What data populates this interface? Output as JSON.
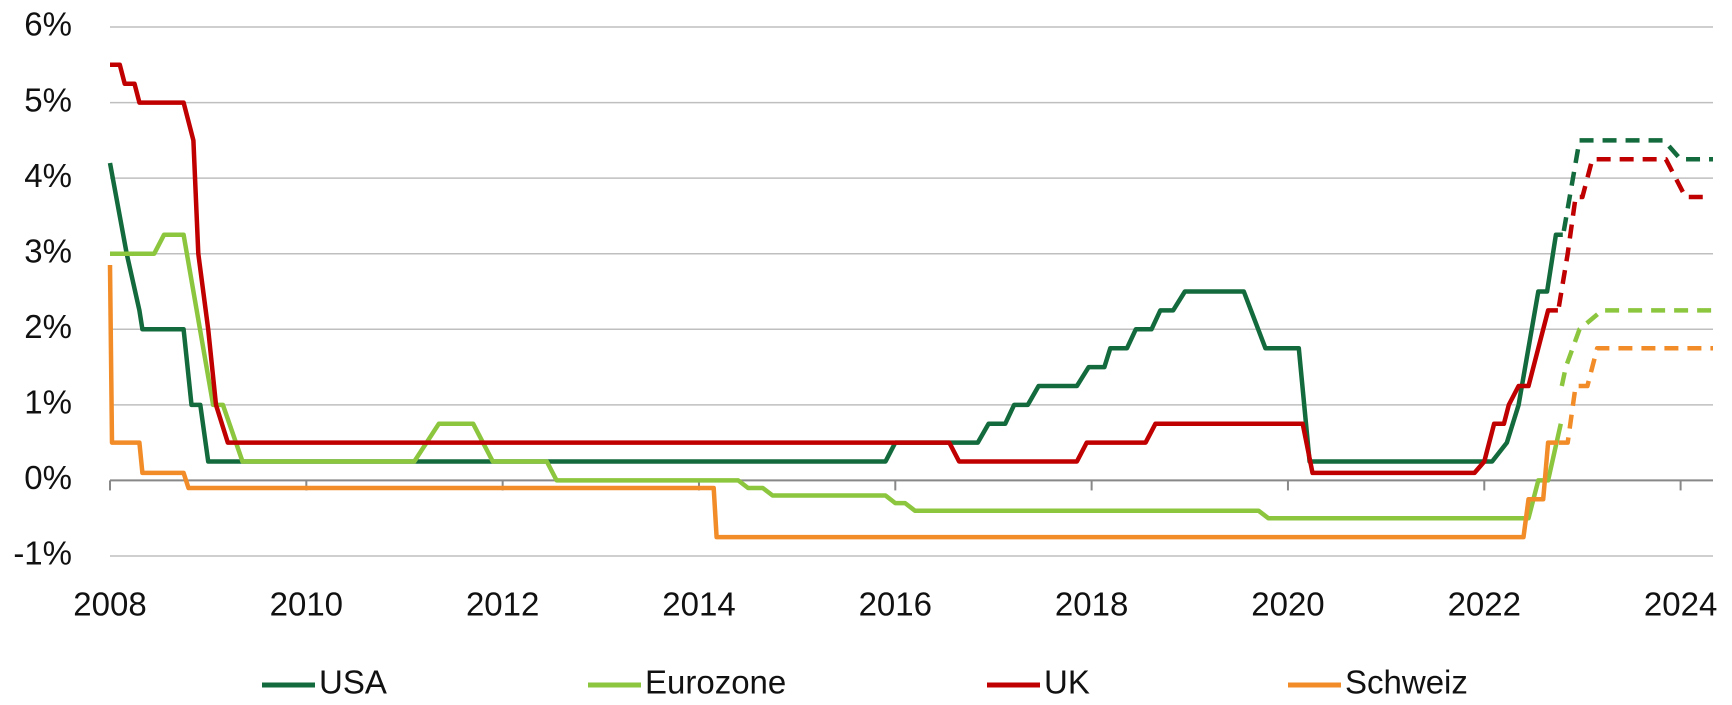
{
  "chart_data": {
    "type": "line",
    "xlim": [
      2008,
      2024.33
    ],
    "xticks": [
      2008,
      2010,
      2012,
      2014,
      2016,
      2018,
      2020,
      2022,
      2024
    ],
    "ylim": [
      -1,
      6
    ],
    "yticks": [
      {
        "value": -1,
        "label": "-1%"
      },
      {
        "value": 0,
        "label": "0%"
      },
      {
        "value": 1,
        "label": "1%"
      },
      {
        "value": 2,
        "label": "2%"
      },
      {
        "value": 3,
        "label": "3%"
      },
      {
        "value": 4,
        "label": "4%"
      },
      {
        "value": 5,
        "label": "5%"
      },
      {
        "value": 6,
        "label": "6%"
      }
    ],
    "grid": true,
    "legend": "bottom",
    "series": [
      {
        "name": "USA",
        "color": "#136b3d",
        "x": [
          2008.0,
          2008.17,
          2008.3,
          2008.33,
          2008.75,
          2008.83,
          2008.92,
          2009.0,
          2015.9,
          2016.0,
          2016.84,
          2016.95,
          2017.12,
          2017.21,
          2017.35,
          2017.46,
          2017.85,
          2017.97,
          2018.13,
          2018.19,
          2018.36,
          2018.45,
          2018.61,
          2018.7,
          2018.83,
          2018.95,
          2019.55,
          2019.77,
          2020.11,
          2020.22,
          2022.08,
          2022.23,
          2022.35,
          2022.55,
          2022.64,
          2022.73,
          2022.8
        ],
        "values": [
          4.2,
          3.0,
          2.25,
          2.0,
          2.0,
          1.0,
          1.0,
          0.25,
          0.25,
          0.5,
          0.5,
          0.75,
          0.75,
          1.0,
          1.0,
          1.25,
          1.25,
          1.5,
          1.5,
          1.75,
          1.75,
          2.0,
          2.0,
          2.25,
          2.25,
          2.5,
          2.5,
          1.75,
          1.75,
          0.25,
          0.25,
          0.5,
          1.0,
          2.5,
          2.5,
          3.25,
          3.25
        ],
        "forecast_x": [
          2022.81,
          2022.97,
          2023.83,
          2024.0,
          2024.33
        ],
        "forecast_values": [
          3.3,
          4.5,
          4.5,
          4.25,
          4.25
        ]
      },
      {
        "name": "Eurozone",
        "color": "#8cc63f",
        "x": [
          2008.0,
          2008.45,
          2008.55,
          2008.75,
          2009.05,
          2009.15,
          2009.35,
          2011.1,
          2011.35,
          2011.7,
          2011.9,
          2012.45,
          2012.55,
          2014.4,
          2014.5,
          2014.65,
          2014.75,
          2015.9,
          2016.0,
          2016.1,
          2016.2,
          2019.7,
          2019.8,
          2022.45,
          2022.55,
          2022.65,
          2022.78
        ],
        "values": [
          3.0,
          3.0,
          3.25,
          3.25,
          1.0,
          1.0,
          0.25,
          0.25,
          0.75,
          0.75,
          0.25,
          0.25,
          0.0,
          0.0,
          -0.1,
          -0.1,
          -0.2,
          -0.2,
          -0.3,
          -0.3,
          -0.4,
          -0.4,
          -0.5,
          -0.5,
          0.0,
          0.0,
          0.75
        ],
        "forecast_x": [
          2022.79,
          2022.83,
          2022.97,
          2023.2,
          2024.33
        ],
        "forecast_values": [
          1.25,
          1.5,
          2.0,
          2.25,
          2.25
        ]
      },
      {
        "name": "UK",
        "color": "#c00000",
        "x": [
          2008.0,
          2008.1,
          2008.15,
          2008.25,
          2008.3,
          2008.75,
          2008.85,
          2008.9,
          2009.0,
          2009.08,
          2009.2,
          2016.55,
          2016.65,
          2017.85,
          2017.95,
          2018.55,
          2018.65,
          2020.15,
          2020.25,
          2021.9,
          2022.0,
          2022.1,
          2022.2,
          2022.25,
          2022.35,
          2022.45,
          2022.55,
          2022.65,
          2022.75
        ],
        "values": [
          5.5,
          5.5,
          5.25,
          5.25,
          5.0,
          5.0,
          4.5,
          3.0,
          2.0,
          1.0,
          0.5,
          0.5,
          0.25,
          0.25,
          0.5,
          0.5,
          0.75,
          0.75,
          0.1,
          0.1,
          0.25,
          0.75,
          0.75,
          1.0,
          1.25,
          1.25,
          1.75,
          2.25,
          2.25
        ],
        "forecast_x": [
          2022.76,
          2022.85,
          2022.93,
          2023.0,
          2023.1,
          2023.85,
          2024.05,
          2024.27
        ],
        "forecast_values": [
          2.3,
          3.0,
          3.75,
          3.75,
          4.25,
          4.25,
          3.75,
          3.75
        ]
      },
      {
        "name": "Schweiz",
        "color": "#f28c28",
        "x": [
          2008.0,
          2008.02,
          2008.3,
          2008.33,
          2008.75,
          2008.8,
          2014.15,
          2014.18,
          2022.4,
          2022.45,
          2022.6,
          2022.65,
          2022.75
        ],
        "values": [
          2.85,
          0.5,
          0.5,
          0.1,
          0.1,
          -0.1,
          -0.1,
          -0.75,
          -0.75,
          -0.25,
          -0.25,
          0.5,
          0.5
        ],
        "forecast_x": [
          2022.76,
          2022.85,
          2022.93,
          2023.05,
          2023.15,
          2024.33
        ],
        "forecast_values": [
          0.5,
          0.5,
          1.25,
          1.25,
          1.75,
          1.75
        ]
      }
    ]
  }
}
